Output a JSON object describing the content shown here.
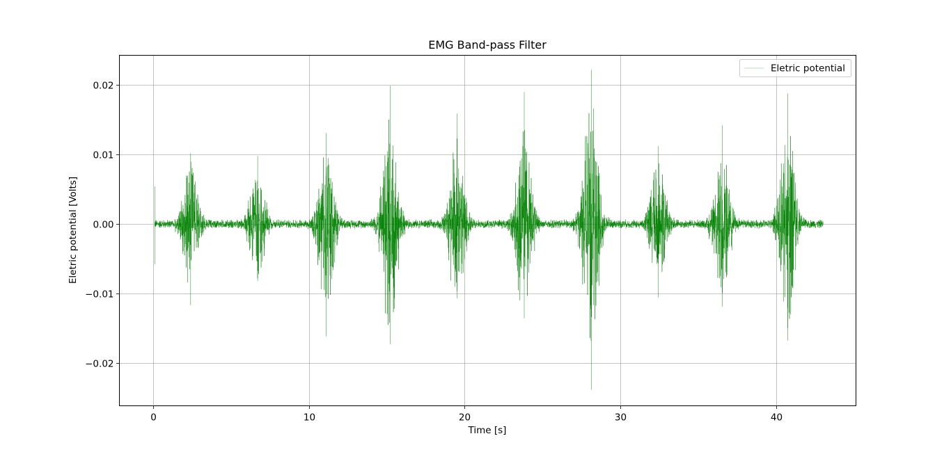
{
  "chart_data": {
    "type": "line",
    "title": "EMG Band-pass Filter",
    "xlabel": "Time [s]",
    "ylabel": "Eletric potential [Volts]",
    "xlim": [
      -2.15,
      45.1
    ],
    "ylim": [
      -0.0262,
      0.0243
    ],
    "x_ticks": [
      0,
      10,
      20,
      30,
      40
    ],
    "x_tick_labels": [
      "0",
      "10",
      "20",
      "30",
      "40"
    ],
    "y_ticks": [
      -0.02,
      -0.01,
      0.0,
      0.01,
      0.02
    ],
    "y_tick_labels": [
      "−0.02",
      "−0.01",
      "0.00",
      "0.01",
      "0.02"
    ],
    "grid": true,
    "legend": {
      "placement": "upper right",
      "entries": [
        "Eletric potential"
      ]
    },
    "series": [
      {
        "name": "Eletric potential",
        "color": "#008000",
        "x_start": 0.1,
        "x_end": 43.0,
        "baseline_noise_amplitude": 0.0007,
        "bursts": [
          {
            "center": 2.4,
            "max": 0.0102,
            "min": -0.0117
          },
          {
            "center": 6.7,
            "max": 0.0098,
            "min": -0.0082
          },
          {
            "center": 11.1,
            "max": 0.0131,
            "min": -0.0162
          },
          {
            "center": 15.2,
            "max": 0.0199,
            "min": -0.0173
          },
          {
            "center": 19.5,
            "max": 0.0159,
            "min": -0.0107
          },
          {
            "center": 23.8,
            "max": 0.019,
            "min": -0.0136
          },
          {
            "center": 28.1,
            "max": 0.0222,
            "min": -0.0239
          },
          {
            "center": 32.4,
            "max": 0.0112,
            "min": -0.0106
          },
          {
            "center": 36.5,
            "max": 0.0142,
            "min": -0.0119
          },
          {
            "center": 40.7,
            "max": 0.0188,
            "min": -0.0168
          }
        ]
      }
    ]
  }
}
